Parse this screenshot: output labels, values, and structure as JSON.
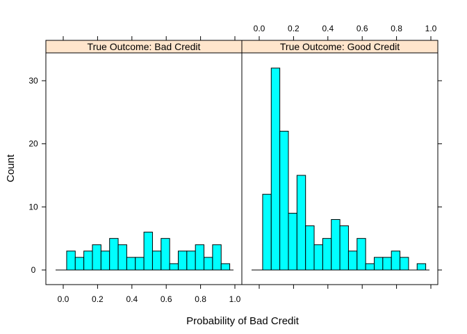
{
  "chart_data": {
    "type": "bar",
    "xlabel": "Probability of Bad Credit",
    "ylabel": "Count",
    "xlim": [
      -0.05,
      1.0
    ],
    "ylim": [
      0,
      35
    ],
    "x_ticks": [
      "0.0",
      "0.2",
      "0.4",
      "0.6",
      "0.8",
      "1.0"
    ],
    "y_ticks": [
      "0",
      "10",
      "20",
      "30"
    ],
    "bar_color": "#00FFFF",
    "strip_color": "#FFE5CC",
    "bin_edges": [
      0.02,
      0.07,
      0.12,
      0.17,
      0.22,
      0.27,
      0.32,
      0.37,
      0.42,
      0.47,
      0.52,
      0.57,
      0.62,
      0.67,
      0.72,
      0.77,
      0.82,
      0.87,
      0.92,
      0.97
    ],
    "panels": [
      {
        "strip": "True Outcome: Bad Credit",
        "values": [
          3,
          2,
          3,
          4,
          3,
          5,
          4,
          2,
          2,
          6,
          3,
          5,
          1,
          3,
          3,
          4,
          2,
          4,
          1
        ]
      },
      {
        "strip": "True Outcome: Good Credit",
        "values": [
          12,
          32,
          22,
          9,
          15,
          7,
          4,
          5,
          8,
          7,
          3,
          5,
          1,
          2,
          2,
          3,
          2,
          0,
          1
        ]
      }
    ]
  }
}
